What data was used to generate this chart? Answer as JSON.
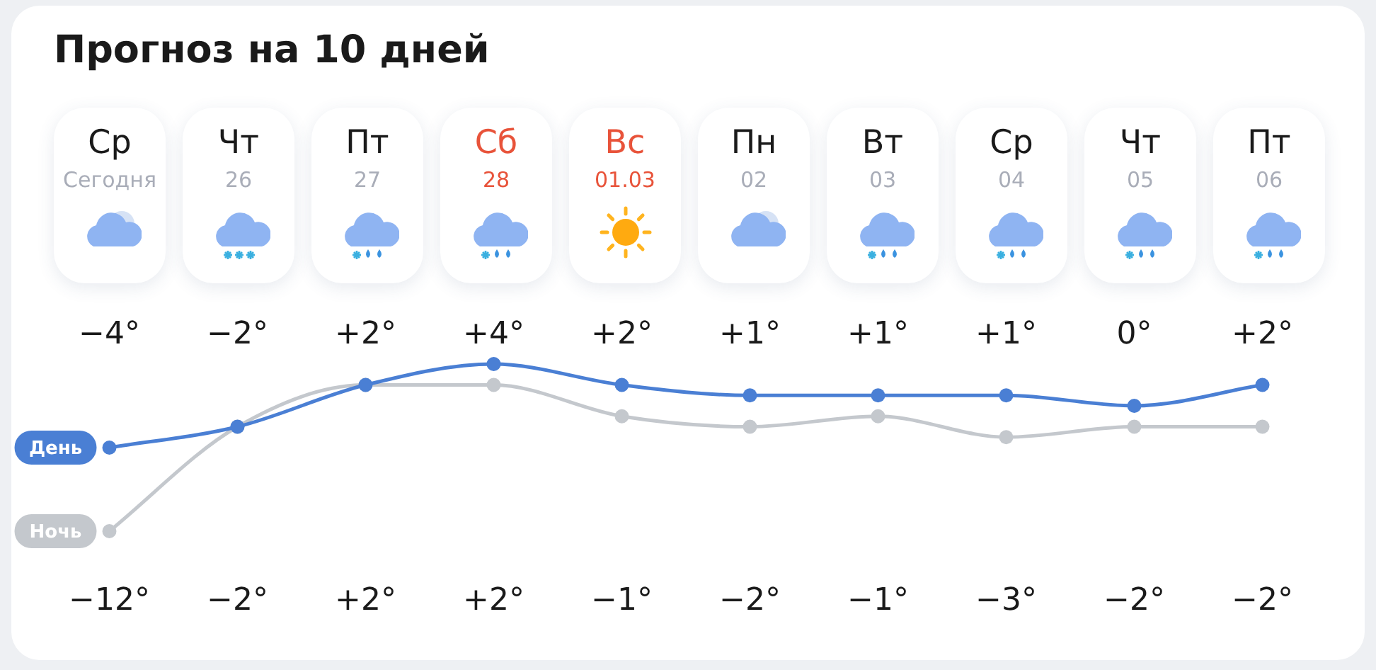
{
  "chart_data": {
    "type": "line",
    "title": "Прогноз на 10 дней",
    "categories": [
      "Ср\nСегодня",
      "Чт\n26",
      "Пт\n27",
      "Сб\n28",
      "Вс\n01.03",
      "Пн\n02",
      "Вт\n03",
      "Ср\n04",
      "Чт\n05",
      "Пт\n06"
    ],
    "series": [
      {
        "name": "День",
        "color": "#4a7fd4",
        "values": [
          -4,
          -2,
          2,
          4,
          2,
          1,
          1,
          1,
          0,
          2
        ],
        "value_labels": [
          "−4°",
          "−2°",
          "+2°",
          "+4°",
          "+2°",
          "+1°",
          "+1°",
          "+1°",
          "0°",
          "+2°"
        ]
      },
      {
        "name": "Ночь",
        "color": "#c4c8cd",
        "values": [
          -12,
          -2,
          2,
          2,
          -1,
          -2,
          -1,
          -3,
          -2,
          -2
        ],
        "value_labels": [
          "−12°",
          "−2°",
          "+2°",
          "+2°",
          "−1°",
          "−2°",
          "−1°",
          "−3°",
          "−2°",
          "−2°"
        ]
      }
    ],
    "marker": "circle",
    "line_style": "solid",
    "grid": false,
    "legend": false
  }
}
